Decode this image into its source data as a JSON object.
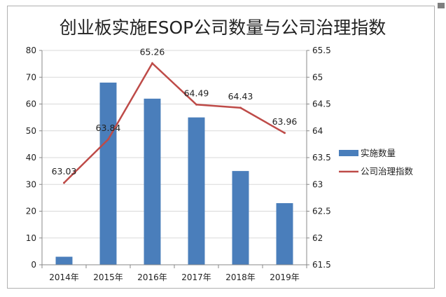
{
  "chart_data": {
    "type": "bar",
    "title": "创业板实施ESOP公司数量与公司治理指数",
    "categories": [
      "2014年",
      "2015年",
      "2016年",
      "2017年",
      "2018年",
      "2019年"
    ],
    "series": [
      {
        "name": "实施数量",
        "type": "bar",
        "axis": "left",
        "values": [
          3,
          68,
          62,
          55,
          35,
          23
        ],
        "color": "#4a7ebb"
      },
      {
        "name": "公司治理指数",
        "type": "line",
        "axis": "right",
        "values": [
          63.03,
          63.84,
          65.26,
          64.49,
          64.43,
          63.96
        ],
        "color": "#be4b48",
        "labels": [
          "63.03",
          "63.84",
          "65.26",
          "64.49",
          "64.43",
          "63.96"
        ]
      }
    ],
    "y_left": {
      "ylim": [
        0,
        80
      ],
      "ticks": [
        "0",
        "10",
        "20",
        "30",
        "40",
        "50",
        "60",
        "70",
        "80"
      ]
    },
    "y_right": {
      "ylim": [
        61.5,
        65.5
      ],
      "ticks": [
        "61.5",
        "62",
        "62.5",
        "63",
        "63.5",
        "64",
        "64.5",
        "65",
        "65.5"
      ]
    },
    "grid": true,
    "legend_position": "right"
  }
}
